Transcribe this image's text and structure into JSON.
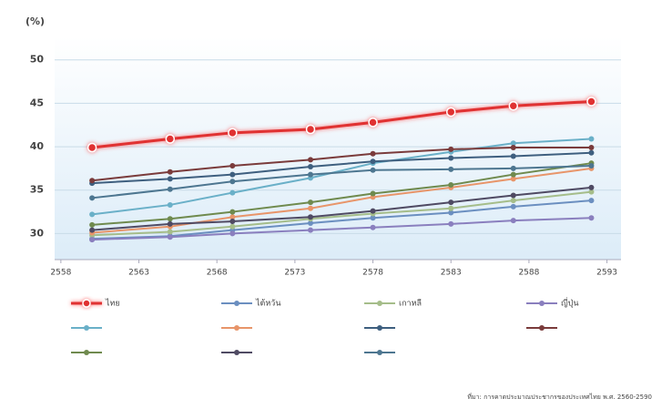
{
  "chart_data": {
    "type": "line",
    "y_label": "(%)",
    "x": [
      2560,
      2565,
      2569,
      2574,
      2578,
      2583,
      2587,
      2592
    ],
    "xlim": [
      2557.6,
      2593.9
    ],
    "xticks": [
      2558,
      2563,
      2568,
      2573,
      2578,
      2583,
      2588,
      2593
    ],
    "ylim": [
      27,
      52.7
    ],
    "yticks": [
      30,
      35,
      40,
      45,
      50
    ],
    "grid": true,
    "series": [
      {
        "name": "ไทย",
        "color": "#e03030",
        "values": [
          39.9,
          40.9,
          41.6,
          42.0,
          42.8,
          44.0,
          44.7,
          45.2
        ]
      },
      {
        "name": "ไต้หวัน",
        "color": "#6b8fc0",
        "values": [
          29.4,
          29.7,
          30.4,
          31.2,
          31.8,
          32.4,
          33.1,
          33.8
        ]
      },
      {
        "name": "เกาหลี",
        "color": "#a5bd8a",
        "values": [
          29.8,
          30.2,
          30.8,
          31.7,
          32.3,
          32.9,
          33.8,
          34.8
        ]
      },
      {
        "name": "ญี่ปุ่น",
        "color": "#8a7fbe",
        "values": [
          29.3,
          29.6,
          30.0,
          30.4,
          30.7,
          31.1,
          31.5,
          31.8
        ]
      },
      {
        "color": "#6ab0c8",
        "values": [
          32.2,
          33.3,
          34.7,
          36.4,
          38.1,
          39.4,
          40.4,
          40.9
        ]
      },
      {
        "color": "#e8956a",
        "values": [
          30.1,
          30.8,
          31.9,
          32.9,
          34.2,
          35.3,
          36.3,
          37.5
        ]
      },
      {
        "color": "#3e5f7f",
        "values": [
          35.8,
          36.3,
          36.8,
          37.7,
          38.3,
          38.7,
          38.9,
          39.3
        ]
      },
      {
        "color": "#7a3b3b",
        "values": [
          36.1,
          37.1,
          37.8,
          38.5,
          39.2,
          39.7,
          39.9,
          39.9
        ]
      },
      {
        "color": "#6f8a4e",
        "values": [
          31.0,
          31.7,
          32.5,
          33.6,
          34.6,
          35.6,
          36.8,
          38.1
        ]
      },
      {
        "color": "#4f4a63",
        "values": [
          30.4,
          31.1,
          31.4,
          31.9,
          32.6,
          33.6,
          34.4,
          35.3
        ]
      },
      {
        "color": "#4d7690",
        "values": [
          34.1,
          35.1,
          36.0,
          36.8,
          37.3,
          37.4,
          37.5,
          37.8
        ]
      }
    ],
    "source": "ที่มา: การคาดประมาณประชากรของประเทศไทย พ.ศ. 2560-2590"
  }
}
